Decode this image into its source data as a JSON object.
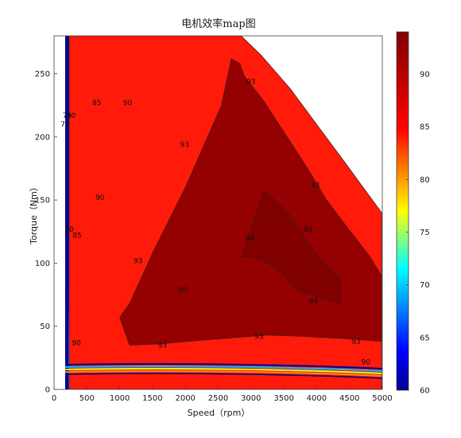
{
  "chart_data": {
    "type": "contour",
    "title": "电机效率map图",
    "xlabel": "Speed（rpm）",
    "ylabel": "Torque（Nm）",
    "xlim": [
      0,
      5000
    ],
    "ylim": [
      0,
      280
    ],
    "x_ticks": [
      "0",
      "500",
      "1000",
      "1500",
      "2000",
      "2500",
      "3000",
      "3500",
      "4000",
      "4500",
      "5000"
    ],
    "y_ticks": [
      "0",
      "50",
      "100",
      "150",
      "200",
      "250"
    ],
    "colorbar": {
      "range": [
        60,
        94
      ],
      "ticks": [
        "60",
        "65",
        "70",
        "75",
        "80",
        "85",
        "90"
      ],
      "colormap": "jet"
    },
    "levels": [
      60,
      65,
      70,
      75,
      80,
      85,
      90,
      93,
      94
    ],
    "regions": [
      {
        "level": 90,
        "color": "#ff1a0a",
        "polygon": [
          [
            230,
            0
          ],
          [
            4990,
            0
          ],
          [
            4990,
            140
          ],
          [
            4400,
            182
          ],
          [
            4000,
            210
          ],
          [
            3600,
            238
          ],
          [
            3150,
            265
          ],
          [
            2850,
            280
          ],
          [
            230,
            280
          ]
        ]
      },
      {
        "level": 93,
        "color": "#950000",
        "polygon": [
          [
            1000,
            57
          ],
          [
            1150,
            35
          ],
          [
            1600,
            36
          ],
          [
            2500,
            40
          ],
          [
            3250,
            43
          ],
          [
            3800,
            42
          ],
          [
            4500,
            40
          ],
          [
            4990,
            38
          ],
          [
            4990,
            90
          ],
          [
            4800,
            106
          ],
          [
            4500,
            126
          ],
          [
            4150,
            150
          ],
          [
            3850,
            176
          ],
          [
            3550,
            200
          ],
          [
            3200,
            228
          ],
          [
            2900,
            248
          ],
          [
            2830,
            258
          ],
          [
            2700,
            262
          ],
          [
            2550,
            225
          ],
          [
            2000,
            160
          ],
          [
            1500,
            108
          ],
          [
            1150,
            68
          ]
        ]
      },
      {
        "level": 94,
        "color": "#800000",
        "polygon": [
          [
            2860,
            105
          ],
          [
            3080,
            140
          ],
          [
            3200,
            158
          ],
          [
            3560,
            140
          ],
          [
            3960,
            109
          ],
          [
            4360,
            88
          ],
          [
            4360,
            68
          ],
          [
            3960,
            74
          ],
          [
            3700,
            78
          ],
          [
            3480,
            92
          ],
          [
            3170,
            103
          ],
          [
            2950,
            105
          ]
        ]
      }
    ],
    "contour_labels": [
      {
        "text": "90",
        "x": 1120,
        "y": 225
      },
      {
        "text": "90",
        "x": 4750,
        "y": 20
      },
      {
        "text": "90",
        "x": 340,
        "y": 35
      },
      {
        "text": "90",
        "x": 1960,
        "y": 77
      },
      {
        "text": "90",
        "x": 700,
        "y": 150
      },
      {
        "text": "85",
        "x": 650,
        "y": 225
      },
      {
        "text": "85",
        "x": 350,
        "y": 120
      },
      {
        "text": "80",
        "x": 260,
        "y": 215
      },
      {
        "text": "80",
        "x": 230,
        "y": 125
      },
      {
        "text": "75",
        "x": 200,
        "y": 215
      },
      {
        "text": "70",
        "x": 170,
        "y": 208
      },
      {
        "text": "93",
        "x": 1990,
        "y": 192
      },
      {
        "text": "93",
        "x": 3980,
        "y": 160
      },
      {
        "text": "93",
        "x": 1280,
        "y": 100
      },
      {
        "text": "93",
        "x": 1650,
        "y": 33
      },
      {
        "text": "93",
        "x": 3120,
        "y": 40
      },
      {
        "text": "93",
        "x": 4600,
        "y": 36
      },
      {
        "text": "93",
        "x": 3000,
        "y": 242
      },
      {
        "text": "94",
        "x": 2980,
        "y": 118
      },
      {
        "text": "94",
        "x": 3870,
        "y": 125
      },
      {
        "text": "94",
        "x": 3950,
        "y": 68
      }
    ]
  }
}
